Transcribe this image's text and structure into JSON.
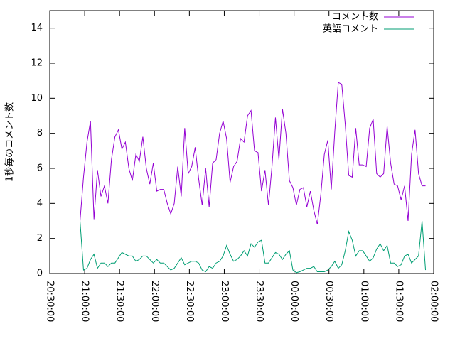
{
  "chart_data": {
    "type": "line",
    "ylabel": "1秒毎のコメント数",
    "x": [
      "20:56:00",
      "20:59:00",
      "21:02:00",
      "21:05:00",
      "21:08:00",
      "21:11:00",
      "21:14:00",
      "21:17:00",
      "21:20:00",
      "21:23:00",
      "21:26:00",
      "21:29:00",
      "21:32:00",
      "21:35:00",
      "21:38:00",
      "21:41:00",
      "21:44:00",
      "21:47:00",
      "21:50:00",
      "21:53:00",
      "21:56:00",
      "21:59:00",
      "22:02:00",
      "22:05:00",
      "22:08:00",
      "22:11:00",
      "22:14:00",
      "22:17:00",
      "22:20:00",
      "22:23:00",
      "22:26:00",
      "22:29:00",
      "22:32:00",
      "22:35:00",
      "22:38:00",
      "22:41:00",
      "22:44:00",
      "22:47:00",
      "22:50:00",
      "22:53:00",
      "22:56:00",
      "22:59:00",
      "23:02:00",
      "23:05:00",
      "23:08:00",
      "23:11:00",
      "23:14:00",
      "23:17:00",
      "23:20:00",
      "23:23:00",
      "23:26:00",
      "23:29:00",
      "23:32:00",
      "23:35:00",
      "23:38:00",
      "23:41:00",
      "23:44:00",
      "23:47:00",
      "23:50:00",
      "23:53:00",
      "23:56:00",
      "23:59:00",
      "00:02:00",
      "00:05:00",
      "00:08:00",
      "00:11:00",
      "00:14:00",
      "00:17:00",
      "00:20:00",
      "00:23:00",
      "00:26:00",
      "00:29:00",
      "00:32:00",
      "00:35:00",
      "00:38:00",
      "00:41:00",
      "00:44:00",
      "00:47:00",
      "00:50:00",
      "00:53:00",
      "00:56:00",
      "00:59:00",
      "01:02:00",
      "01:05:00",
      "01:08:00",
      "01:11:00",
      "01:14:00",
      "01:17:00",
      "01:20:00",
      "01:23:00",
      "01:26:00",
      "01:29:00",
      "01:32:00",
      "01:35:00",
      "01:38:00",
      "01:41:00",
      "01:44:00",
      "01:47:00",
      "01:50:00",
      "01:53:00"
    ],
    "series": [
      {
        "name": "コメント数",
        "color": "#9400d3",
        "values": [
          3.0,
          5.5,
          7.5,
          8.7,
          3.1,
          5.9,
          4.4,
          5.0,
          4.0,
          6.5,
          7.8,
          8.2,
          7.1,
          7.5,
          6.0,
          5.3,
          6.8,
          6.4,
          7.8,
          6.0,
          5.1,
          6.3,
          4.7,
          4.8,
          4.8,
          4.0,
          3.4,
          4.0,
          6.1,
          4.4,
          8.3,
          5.7,
          6.1,
          7.2,
          5.4,
          3.9,
          6.0,
          3.8,
          6.3,
          6.5,
          8.0,
          8.7,
          7.7,
          5.2,
          6.1,
          6.4,
          7.7,
          7.5,
          9.0,
          9.3,
          7.0,
          6.9,
          4.7,
          5.9,
          3.9,
          6.1,
          8.9,
          6.5,
          9.4,
          8.0,
          5.3,
          4.9,
          3.9,
          4.8,
          4.9,
          3.8,
          4.7,
          3.6,
          2.8,
          4.5,
          6.8,
          7.6,
          4.8,
          8.1,
          10.9,
          10.8,
          8.5,
          5.6,
          5.5,
          8.3,
          6.2,
          6.2,
          6.1,
          8.3,
          8.8,
          5.7,
          5.5,
          5.7,
          8.4,
          6.3,
          5.1,
          5.0,
          4.2,
          5.0,
          3.0,
          6.8,
          8.2,
          5.7,
          5.0,
          5.0
        ]
      },
      {
        "name": "英語コメント",
        "color": "#009e73",
        "values": [
          3.0,
          0.2,
          0.3,
          0.8,
          1.1,
          0.3,
          0.6,
          0.6,
          0.4,
          0.6,
          0.6,
          0.9,
          1.2,
          1.1,
          1.0,
          1.0,
          0.7,
          0.8,
          1.0,
          1.0,
          0.8,
          0.6,
          0.8,
          0.6,
          0.6,
          0.4,
          0.2,
          0.3,
          0.6,
          0.9,
          0.5,
          0.6,
          0.7,
          0.7,
          0.6,
          0.2,
          0.1,
          0.4,
          0.3,
          0.6,
          0.7,
          1.0,
          1.6,
          1.1,
          0.7,
          0.8,
          1.0,
          1.3,
          1.0,
          1.7,
          1.5,
          1.8,
          1.9,
          0.6,
          0.6,
          0.9,
          1.2,
          1.1,
          0.8,
          1.1,
          1.3,
          0.2,
          0.05,
          0.1,
          0.2,
          0.3,
          0.3,
          0.4,
          0.1,
          0.1,
          0.1,
          0.2,
          0.4,
          0.7,
          0.3,
          0.5,
          1.3,
          2.4,
          1.9,
          1.0,
          1.3,
          1.3,
          1.0,
          0.7,
          0.9,
          1.4,
          1.7,
          1.3,
          1.6,
          0.6,
          0.6,
          0.4,
          0.5,
          1.0,
          1.1,
          0.6,
          0.8,
          1.0,
          3.0,
          0.2
        ]
      }
    ],
    "xlim": [
      "20:30:00",
      "02:00:00"
    ],
    "xticks": [
      "20:30:00",
      "21:00:00",
      "21:30:00",
      "22:00:00",
      "22:30:00",
      "23:00:00",
      "23:30:00",
      "00:00:00",
      "00:30:00",
      "01:00:00",
      "01:30:00",
      "02:00:00"
    ],
    "ylim": [
      0,
      15
    ],
    "yticks": [
      0,
      2,
      4,
      6,
      8,
      10,
      12,
      14
    ],
    "grid": false,
    "legend": "top-right"
  }
}
